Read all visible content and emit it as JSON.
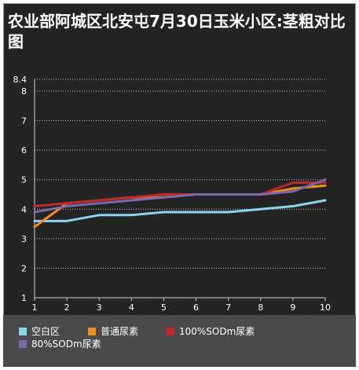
{
  "chart_data": {
    "type": "line",
    "title": "农业部阿城区北安屯7月30日玉米小区:茎粗对比图",
    "xlabel": "",
    "ylabel": "",
    "x": [
      1,
      2,
      3,
      4,
      5,
      6,
      7,
      8,
      9,
      10
    ],
    "x_tick_labels": [
      "1",
      "2",
      "3",
      "4",
      "5",
      "6",
      "7",
      "8",
      "9",
      "10"
    ],
    "ylim": [
      1,
      8.4
    ],
    "y_tick_labels": [
      "1",
      "2",
      "3",
      "4",
      "5",
      "6",
      "7",
      "8",
      "8.4"
    ],
    "y_ticks": [
      1,
      2,
      3,
      4,
      5,
      6,
      7,
      8,
      8.4
    ],
    "grid": true,
    "legend_position": "bottom",
    "series": [
      {
        "name": "空白区",
        "color": "#8fd3ec",
        "values": [
          3.6,
          3.6,
          3.8,
          3.8,
          3.9,
          3.9,
          3.9,
          4.0,
          4.1,
          4.3
        ]
      },
      {
        "name": "普通尿素",
        "color": "#f0901e",
        "values": [
          3.4,
          4.2,
          4.3,
          4.4,
          4.4,
          4.5,
          4.5,
          4.5,
          4.7,
          4.8
        ]
      },
      {
        "name": "100%SODm尿素",
        "color": "#c0282d",
        "values": [
          4.1,
          4.2,
          4.3,
          4.4,
          4.5,
          4.5,
          4.5,
          4.5,
          4.9,
          4.9
        ]
      },
      {
        "name": "80%SODm尿素",
        "color": "#7a6aa8",
        "values": [
          3.9,
          4.1,
          4.2,
          4.3,
          4.4,
          4.5,
          4.5,
          4.5,
          4.6,
          5.0
        ]
      }
    ]
  }
}
